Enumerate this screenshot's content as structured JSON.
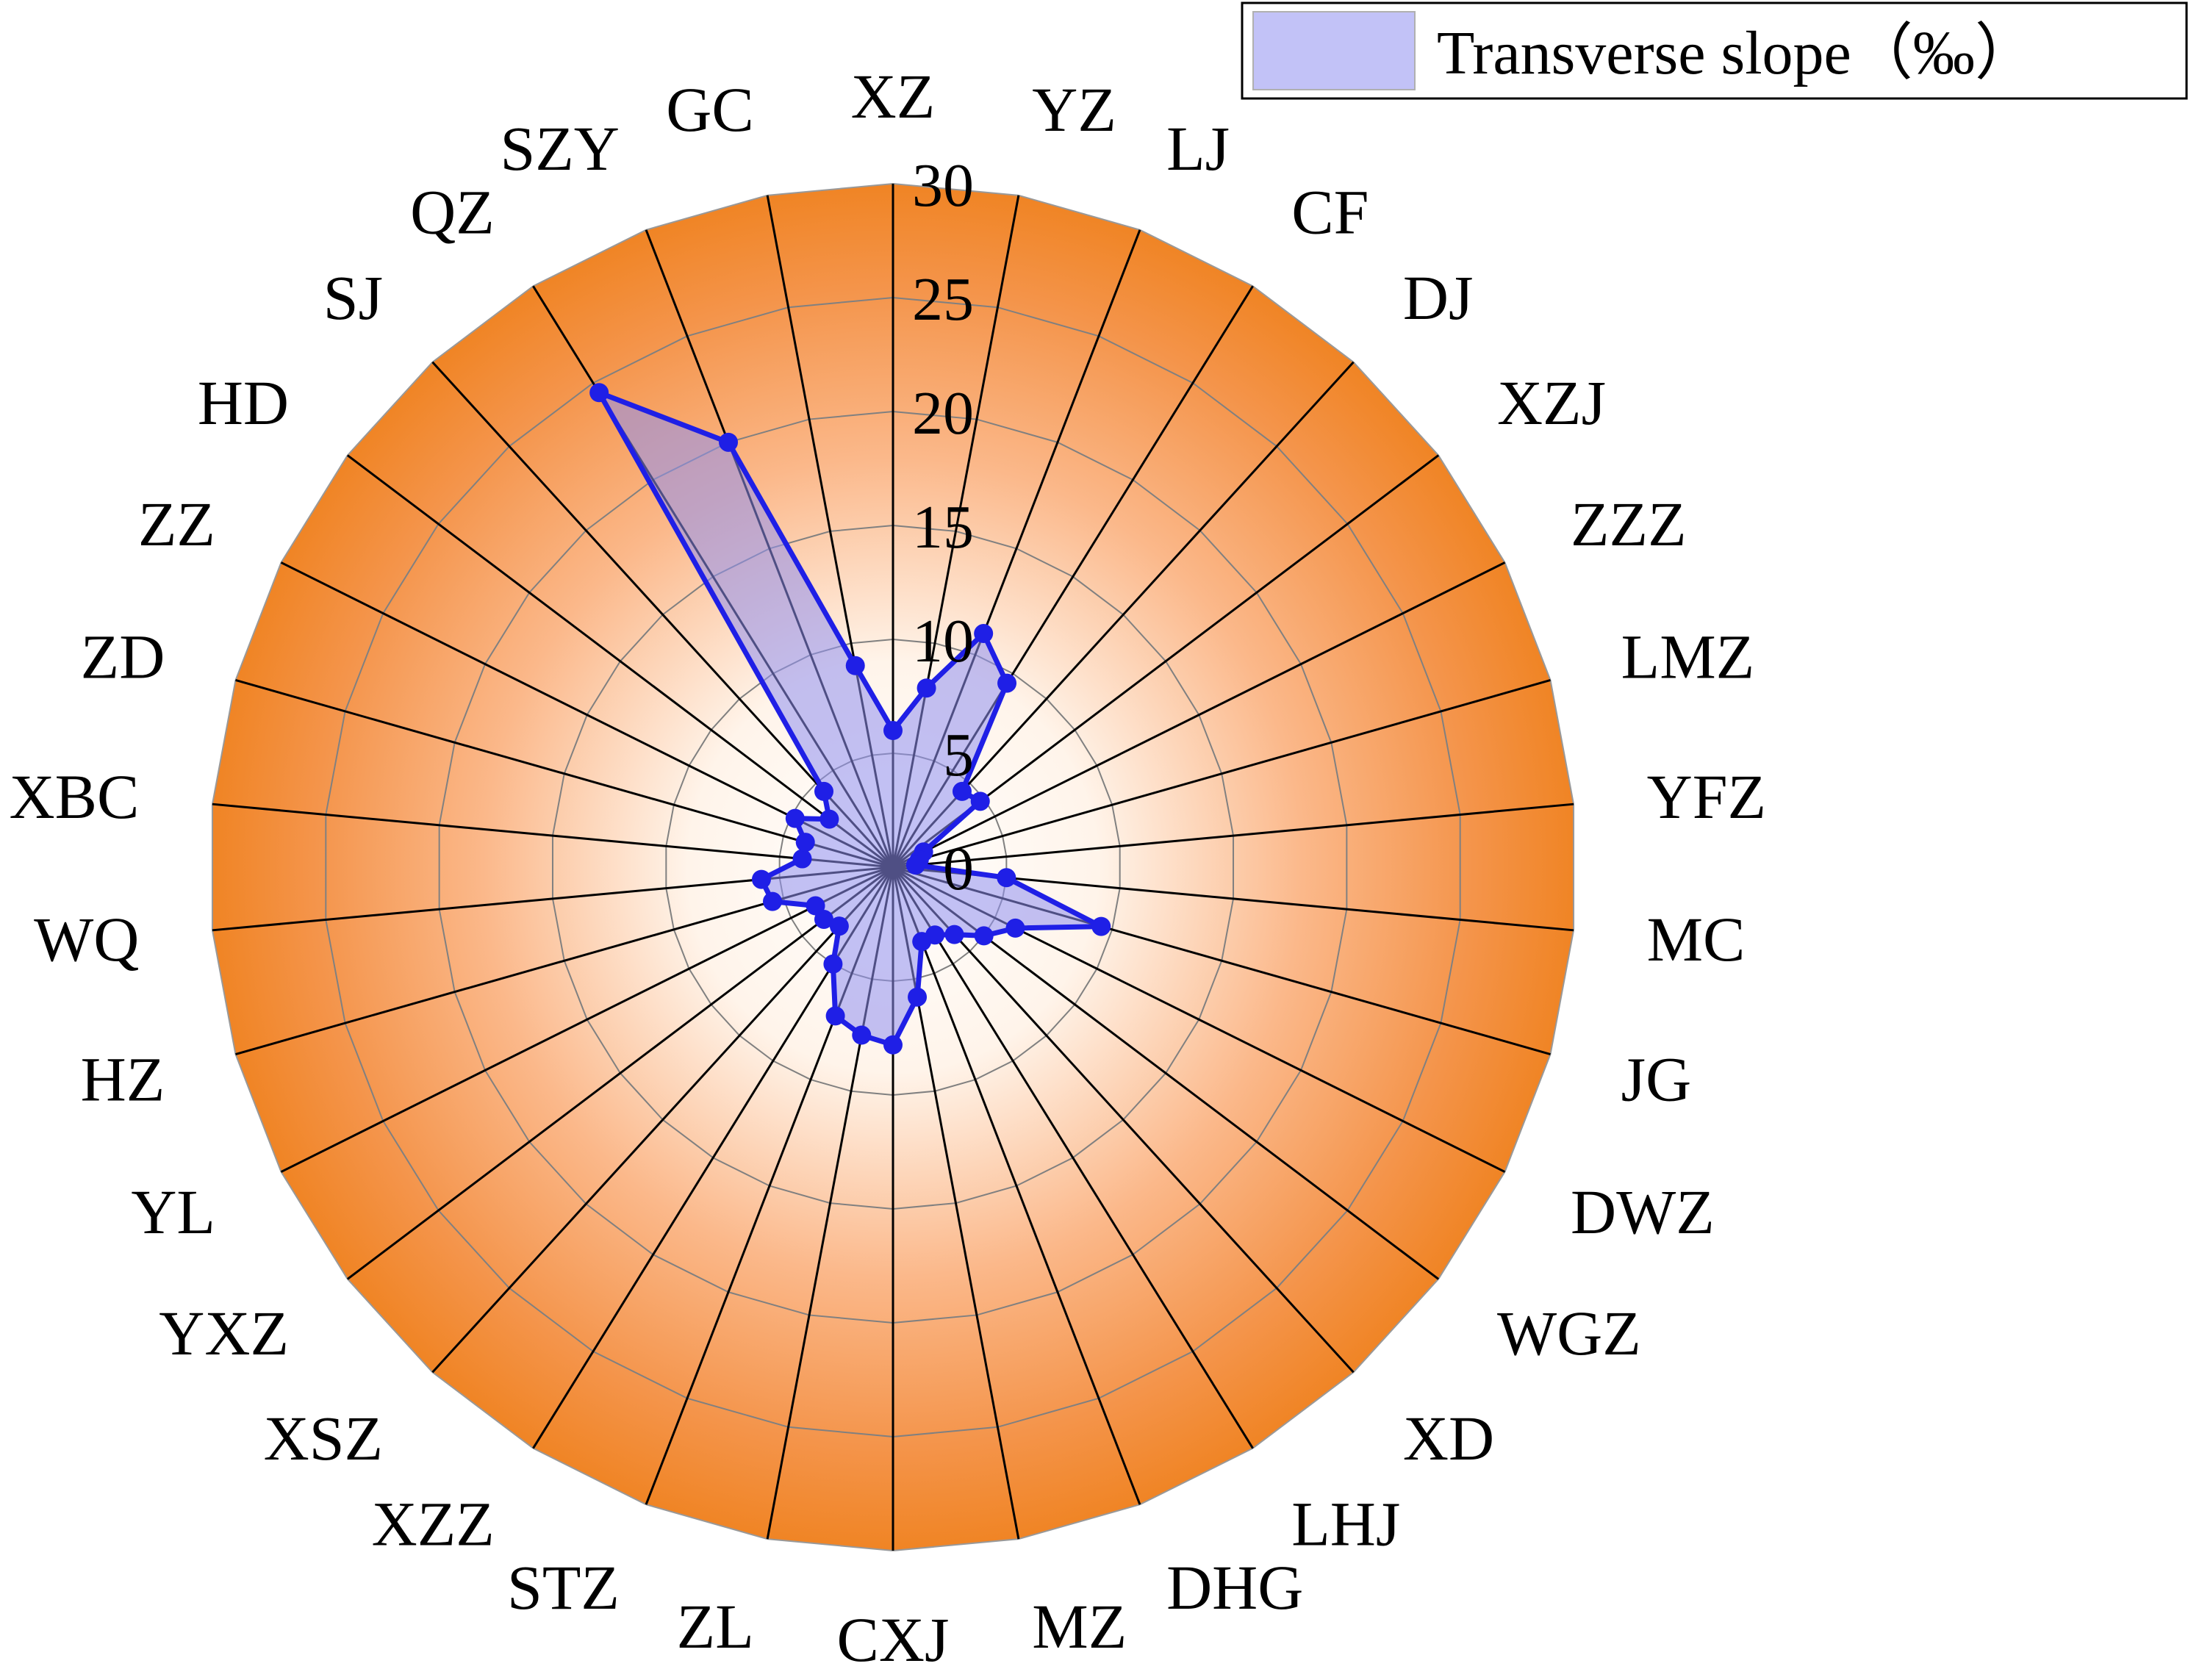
{
  "chart_data": {
    "type": "radar",
    "title": "",
    "categories": [
      "XZ",
      "YZ",
      "LJ",
      "CF",
      "DJ",
      "XZJ",
      "ZZZ",
      "LMZ",
      "YFZ",
      "MC",
      "JG",
      "DWZ",
      "WGZ",
      "XD",
      "LHJ",
      "DHG",
      "MZ",
      "CXJ",
      "ZL",
      "STZ",
      "XZZ",
      "XSZ",
      "YXZ",
      "YL",
      "HZ",
      "WQ",
      "XBC",
      "ZD",
      "ZZ",
      "HD",
      "SJ",
      "QZ",
      "SZY",
      "GC"
    ],
    "radial_ticks": [
      "0",
      "5",
      "10",
      "15",
      "20",
      "25",
      "30"
    ],
    "rlim": [
      0,
      30
    ],
    "series": [
      {
        "name": "Transverse slope（‰）",
        "values": [
          6,
          8,
          11,
          9.5,
          4.5,
          4.8,
          1.5,
          1.2,
          1,
          5.0,
          9.5,
          6.0,
          5.0,
          4.0,
          3.5,
          3.5,
          5.8,
          7.8,
          7.5,
          7.0,
          5.0,
          3.5,
          3.8,
          3.8,
          5.5,
          5.8,
          4.0,
          4.0,
          4.8,
          3.5,
          4.5,
          24.5,
          20,
          9
        ]
      }
    ],
    "legend": {
      "position": "top-right",
      "label": "Transverse slope（‰）"
    },
    "colors": {
      "series_line": "#1f1fe6",
      "series_fill": "#8f8ff0",
      "background_outer": "#f08424",
      "background_inner": "#ffffff",
      "spokes": "#000000",
      "grid": "#808080"
    }
  }
}
